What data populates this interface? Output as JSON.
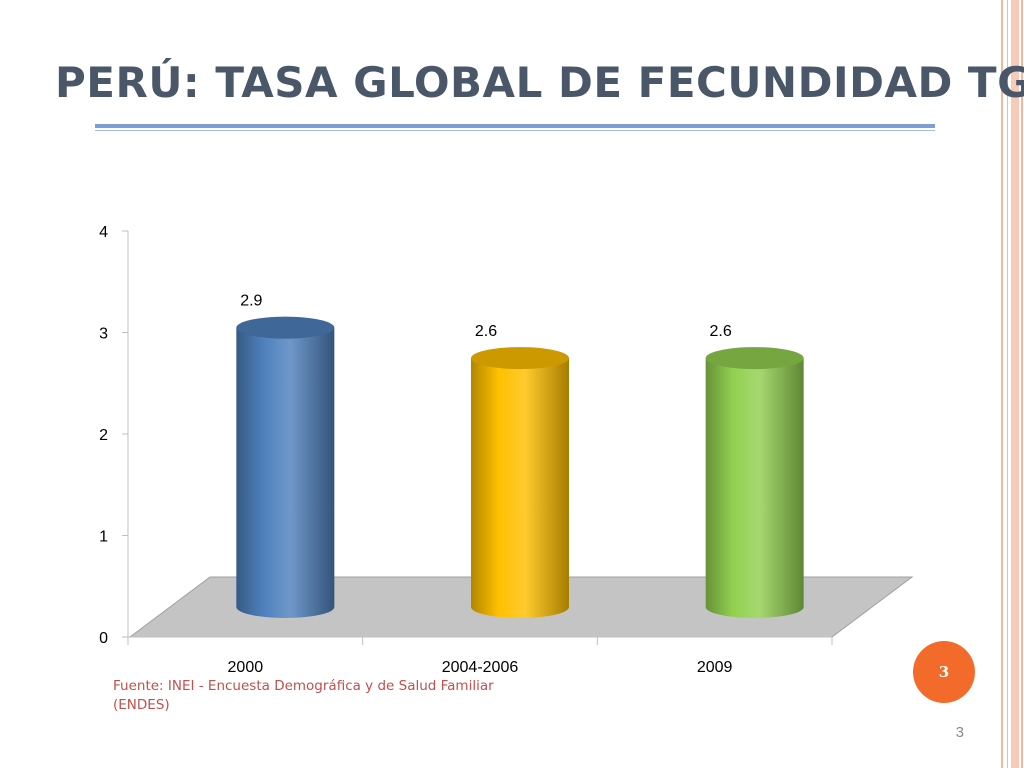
{
  "slide": {
    "title": "PERÚ: TASA GLOBAL DE FECUNDIDAD TGF",
    "source": "Fuente: INEI - Encuesta Demográfica y de Salud Familiar (ENDES)",
    "badge_number": "3",
    "page_number": "3"
  },
  "colors": {
    "title": "#4a5769",
    "rule": "#7b9fd2",
    "source_text": "#c0504d",
    "badge": "#f26b2a",
    "frame": "#f4b69c",
    "floor": "#c4c4c4"
  },
  "chart_data": {
    "type": "bar",
    "style": "3d-cylinder",
    "categories": [
      "2000",
      "2004-2006",
      "2009"
    ],
    "values": [
      2.9,
      2.6,
      2.6
    ],
    "data_labels": [
      "2.9",
      "2.6",
      "2.6"
    ],
    "bar_colors": [
      "#4f81bd",
      "#ffc000",
      "#92d050"
    ],
    "title": "",
    "xlabel": "",
    "ylabel": "",
    "ylim": [
      0,
      4
    ],
    "yticks": [
      "0",
      "1",
      "2",
      "3",
      "4"
    ],
    "grid": false,
    "legend": "none"
  }
}
